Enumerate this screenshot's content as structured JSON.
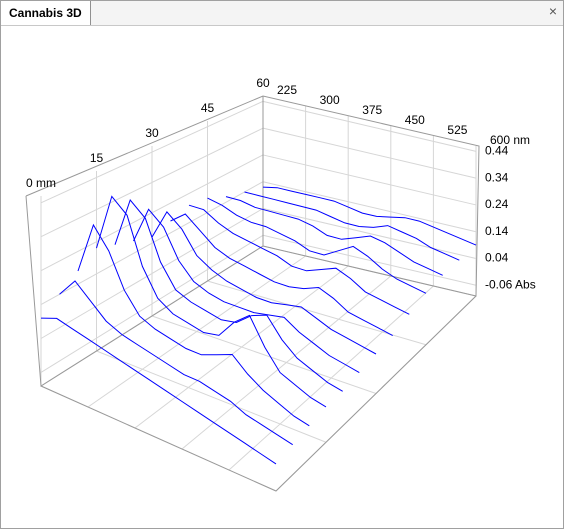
{
  "tab": {
    "title": "Cannabis 3D",
    "close": "×"
  },
  "chart_data": {
    "type": "waterfall3d",
    "color": "#0000ff",
    "grid": true,
    "x": [
      225,
      250,
      275,
      300,
      325,
      350,
      375,
      400,
      425,
      450,
      475,
      500,
      525,
      550,
      575,
      600
    ],
    "xlim": [
      225,
      600
    ],
    "xticks": [
      225,
      300,
      375,
      450,
      525,
      {
        "value": 600,
        "label": "600 nm"
      }
    ],
    "distances": [
      0,
      5,
      10,
      15,
      20,
      25,
      30,
      35,
      40,
      45,
      50,
      55,
      60
    ],
    "dlim": [
      0,
      60
    ],
    "dticks": [
      {
        "value": 0,
        "label": "0 mm"
      },
      15,
      30,
      45,
      60
    ],
    "zlim": [
      -0.1,
      0.46
    ],
    "zticks": [
      0.44,
      0.34,
      0.24,
      0.14,
      0.04,
      {
        "value": -0.06,
        "label": "-0.06 Abs"
      }
    ],
    "values": [
      [
        0.1,
        0.12,
        0.11,
        0.1,
        0.09,
        0.08,
        0.07,
        0.06,
        0.05,
        0.04,
        0.03,
        0.02,
        0.01,
        0.0,
        -0.01,
        -0.02
      ],
      [
        0.14,
        0.2,
        0.16,
        0.12,
        0.1,
        0.09,
        0.08,
        0.07,
        0.06,
        0.06,
        0.05,
        0.04,
        0.02,
        0.01,
        0.0,
        -0.01
      ],
      [
        0.18,
        0.34,
        0.28,
        0.18,
        0.12,
        0.1,
        0.09,
        0.08,
        0.08,
        0.1,
        0.12,
        0.08,
        0.05,
        0.03,
        0.01,
        0.0
      ],
      [
        0.22,
        0.4,
        0.36,
        0.22,
        0.14,
        0.11,
        0.1,
        0.09,
        0.1,
        0.16,
        0.2,
        0.12,
        0.06,
        0.04,
        0.02,
        0.01
      ],
      [
        0.2,
        0.36,
        0.32,
        0.2,
        0.13,
        0.11,
        0.1,
        0.09,
        0.1,
        0.14,
        0.16,
        0.1,
        0.06,
        0.04,
        0.02,
        0.01
      ],
      [
        0.18,
        0.3,
        0.26,
        0.17,
        0.12,
        0.1,
        0.09,
        0.09,
        0.09,
        0.1,
        0.11,
        0.08,
        0.06,
        0.04,
        0.03,
        0.02
      ],
      [
        0.16,
        0.26,
        0.22,
        0.15,
        0.12,
        0.1,
        0.09,
        0.08,
        0.08,
        0.09,
        0.1,
        0.08,
        0.06,
        0.05,
        0.04,
        0.03
      ],
      [
        0.18,
        0.22,
        0.18,
        0.14,
        0.12,
        0.11,
        0.1,
        0.09,
        0.09,
        0.1,
        0.12,
        0.1,
        0.07,
        0.06,
        0.05,
        0.04
      ],
      [
        0.2,
        0.2,
        0.17,
        0.15,
        0.14,
        0.13,
        0.12,
        0.1,
        0.1,
        0.12,
        0.14,
        0.12,
        0.09,
        0.08,
        0.07,
        0.06
      ],
      [
        0.19,
        0.18,
        0.16,
        0.15,
        0.15,
        0.14,
        0.13,
        0.11,
        0.11,
        0.14,
        0.17,
        0.15,
        0.12,
        0.1,
        0.09,
        0.08
      ],
      [
        0.16,
        0.16,
        0.15,
        0.15,
        0.15,
        0.15,
        0.14,
        0.12,
        0.12,
        0.14,
        0.16,
        0.15,
        0.13,
        0.11,
        0.1,
        0.09
      ],
      [
        0.14,
        0.14,
        0.14,
        0.14,
        0.14,
        0.14,
        0.13,
        0.12,
        0.12,
        0.13,
        0.15,
        0.14,
        0.13,
        0.11,
        0.1,
        0.09
      ],
      [
        0.12,
        0.13,
        0.13,
        0.13,
        0.13,
        0.13,
        0.12,
        0.11,
        0.11,
        0.12,
        0.13,
        0.13,
        0.12,
        0.11,
        0.1,
        0.09
      ]
    ]
  }
}
